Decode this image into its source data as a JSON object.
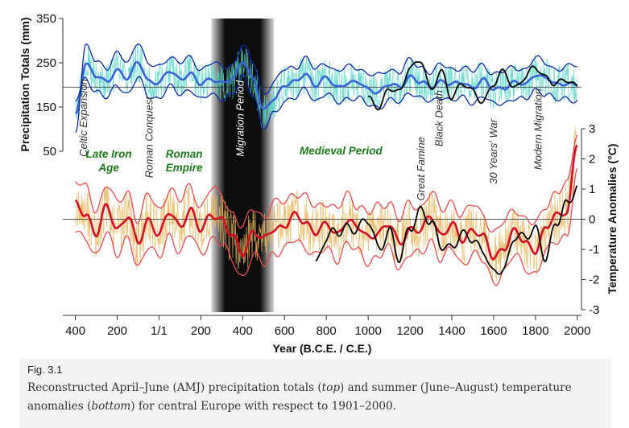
{
  "chart_data": [
    {
      "type": "line",
      "panel": "top",
      "ylabel": "Precipitation Totals (mm)",
      "ylim": [
        50,
        350
      ],
      "yticks": [
        "350",
        "250",
        "150",
        "50"
      ],
      "baseline": 195,
      "series_colors": [
        "#0d2aa8",
        "#3a63d6",
        "#55d6c7",
        "#000000"
      ],
      "x": [
        -400,
        -350,
        -300,
        -250,
        -200,
        -150,
        -100,
        -50,
        0,
        50,
        100,
        150,
        200,
        250,
        300,
        350,
        400,
        450,
        500,
        550,
        600,
        650,
        700,
        750,
        800,
        850,
        900,
        950,
        1000,
        1050,
        1100,
        1150,
        1200,
        1250,
        1300,
        1350,
        1400,
        1450,
        1500,
        1550,
        1600,
        1650,
        1700,
        1750,
        1800,
        1850,
        1900,
        1950,
        2000
      ],
      "series": [
        {
          "values": [
            130,
            250,
            220,
            205,
            235,
            215,
            250,
            210,
            205,
            230,
            215,
            225,
            200,
            215,
            205,
            210,
            255,
            215,
            140,
            170,
            200,
            205,
            225,
            200,
            215,
            195,
            205,
            205,
            190,
            185,
            200,
            195,
            220,
            205,
            195,
            210,
            200,
            205,
            195,
            210,
            190,
            195,
            205,
            200,
            225,
            215,
            200,
            205,
            200
          ]
        },
        {
          "values": [
            95,
            285,
            255,
            240,
            270,
            250,
            300,
            245,
            240,
            265,
            250,
            260,
            235,
            250,
            240,
            245,
            290,
            250,
            180,
            205,
            235,
            240,
            260,
            235,
            250,
            230,
            240,
            240,
            225,
            220,
            235,
            230,
            255,
            240,
            230,
            245,
            235,
            240,
            230,
            245,
            225,
            230,
            240,
            235,
            260,
            250,
            235,
            240,
            245
          ]
        },
        {
          "values": [
            165,
            215,
            185,
            170,
            200,
            180,
            215,
            175,
            170,
            195,
            180,
            190,
            165,
            180,
            170,
            175,
            220,
            180,
            100,
            135,
            165,
            170,
            190,
            165,
            180,
            160,
            170,
            170,
            155,
            150,
            165,
            160,
            185,
            170,
            160,
            175,
            165,
            170,
            160,
            175,
            155,
            160,
            170,
            165,
            190,
            180,
            165,
            170,
            165
          ]
        }
      ],
      "instrumental": {
        "x": [
          1000,
          1050,
          1100,
          1150,
          1200,
          1250,
          1300,
          1350,
          1400,
          1450,
          1500,
          1550,
          1600,
          1650,
          1700,
          1750,
          1800,
          1850,
          1900,
          1950,
          2000
        ],
        "values": [
          165,
          150,
          195,
          180,
          240,
          260,
          185,
          230,
          175,
          200,
          185,
          165,
          200,
          230,
          195,
          215,
          240,
          220,
          200,
          210,
          200
        ]
      }
    },
    {
      "type": "line",
      "panel": "bottom",
      "ylabel": "Temperature Anomalies (°C)",
      "ylim": [
        -3,
        3
      ],
      "yticks": [
        "3",
        "2",
        "1",
        "0",
        "-1",
        "-2",
        "-3"
      ],
      "baseline": 0,
      "series_colors": [
        "#d20f24",
        "#e84b52",
        "#e8b55a",
        "#000000"
      ],
      "x": [
        -400,
        -350,
        -300,
        -250,
        -200,
        -150,
        -100,
        -50,
        0,
        50,
        100,
        150,
        200,
        250,
        300,
        350,
        400,
        450,
        500,
        550,
        600,
        650,
        700,
        750,
        800,
        850,
        900,
        950,
        1000,
        1050,
        1100,
        1150,
        1200,
        1250,
        1300,
        1350,
        1400,
        1450,
        1500,
        1550,
        1600,
        1650,
        1700,
        1750,
        1800,
        1850,
        1900,
        1950,
        2000
      ],
      "series": [
        {
          "values": [
            0.5,
            0.2,
            -0.5,
            0.4,
            -0.3,
            0.1,
            -0.8,
            0.0,
            -0.5,
            0.2,
            -0.2,
            0.3,
            -0.4,
            0.2,
            0.0,
            -0.6,
            -1.1,
            -0.4,
            -0.7,
            -0.3,
            -0.2,
            0.1,
            -0.1,
            -0.4,
            -0.2,
            -0.5,
            0.0,
            -0.3,
            -0.6,
            -0.4,
            -0.2,
            -0.8,
            -0.3,
            -0.4,
            0.1,
            -0.5,
            -0.2,
            -0.7,
            -0.3,
            -0.6,
            -1.3,
            -0.9,
            -0.4,
            -0.8,
            -1.0,
            -0.3,
            0.1,
            0.3,
            2.5
          ]
        },
        {
          "values": [
            1.3,
            1.0,
            0.3,
            1.2,
            0.5,
            0.9,
            0.0,
            0.8,
            0.3,
            1.0,
            0.6,
            1.1,
            0.4,
            1.0,
            0.8,
            0.2,
            -0.3,
            0.4,
            0.1,
            0.5,
            0.6,
            0.9,
            0.7,
            0.4,
            0.6,
            0.3,
            0.8,
            0.5,
            0.2,
            0.4,
            0.6,
            0.0,
            0.5,
            0.4,
            0.9,
            0.3,
            0.6,
            0.1,
            0.5,
            0.2,
            -0.5,
            -0.1,
            0.4,
            0.0,
            -0.2,
            0.5,
            0.9,
            1.1,
            2.9
          ]
        },
        {
          "values": [
            -0.3,
            -0.6,
            -1.3,
            -0.4,
            -1.1,
            -0.7,
            -1.6,
            -0.8,
            -1.3,
            -0.6,
            -1.0,
            -0.5,
            -1.2,
            -0.6,
            -0.8,
            -1.4,
            -1.9,
            -1.2,
            -1.5,
            -1.1,
            -1.0,
            -0.7,
            -0.9,
            -1.2,
            -1.0,
            -1.3,
            -0.8,
            -1.1,
            -1.4,
            -1.2,
            -1.0,
            -1.6,
            -1.1,
            -1.2,
            -0.7,
            -1.3,
            -1.0,
            -1.5,
            -1.1,
            -1.4,
            -2.1,
            -1.7,
            -1.2,
            -1.6,
            -1.8,
            -1.1,
            -0.7,
            -0.5,
            1.5
          ]
        }
      ],
      "instrumental": {
        "x": [
          750,
          800,
          850,
          900,
          950,
          1000,
          1050,
          1100,
          1150,
          1200,
          1250,
          1300,
          1350,
          1400,
          1450,
          1500,
          1550,
          1600,
          1650,
          1700,
          1750,
          1800,
          1850,
          1900,
          1950,
          2000
        ],
        "values": [
          -1.4,
          -0.6,
          -0.5,
          -0.2,
          -0.3,
          -0.1,
          -0.9,
          -0.4,
          -1.4,
          -0.2,
          0.3,
          -0.2,
          -0.8,
          -0.9,
          -0.6,
          -0.6,
          -1.0,
          -1.9,
          -1.6,
          -0.5,
          -0.7,
          -0.3,
          -1.2,
          -0.2,
          0.5,
          1.2
        ]
      }
    }
  ],
  "x_axis": {
    "label": "Year (B.C.E. / C.E.)",
    "range": [
      -460,
      2020
    ],
    "ticks": [
      {
        "value": -400,
        "label": "400"
      },
      {
        "value": -200,
        "label": "200"
      },
      {
        "value": 0,
        "label": "1/1"
      },
      {
        "value": 200,
        "label": "200"
      },
      {
        "value": 400,
        "label": "400"
      },
      {
        "value": 600,
        "label": "600"
      },
      {
        "value": 800,
        "label": "800"
      },
      {
        "value": 1000,
        "label": "1000"
      },
      {
        "value": 1200,
        "label": "1200"
      },
      {
        "value": 1400,
        "label": "1400"
      },
      {
        "value": 1600,
        "label": "1600"
      },
      {
        "value": 1800,
        "label": "1800"
      },
      {
        "value": 2000,
        "label": "2000"
      }
    ]
  },
  "shaded_period": {
    "start": 250,
    "end": 550,
    "color": "#000000"
  },
  "annotations": {
    "periods": [
      {
        "text": "Late Iron",
        "x": -240,
        "color": "#1d7a1d"
      },
      {
        "text": "Age",
        "x": -240,
        "color": "#1d7a1d"
      },
      {
        "text": "Roman",
        "x": 120,
        "color": "#1d7a1d"
      },
      {
        "text": "Empire",
        "x": 120,
        "color": "#1d7a1d"
      },
      {
        "text": "Medieval Period",
        "x": 870,
        "color": "#1d7a1d"
      }
    ],
    "events": [
      {
        "text": "Celtic Expansion",
        "x": -345
      },
      {
        "text": "Roman Conquest",
        "x": -30
      },
      {
        "text": "Migration Period",
        "x": 405
      },
      {
        "text": "Great Famine",
        "x": 1270
      },
      {
        "text": "Black Death",
        "x": 1355
      },
      {
        "text": "30 Years' War",
        "x": 1615
      },
      {
        "text": "Modern Migration",
        "x": 1830
      }
    ]
  },
  "caption": {
    "label": "Fig. 3.1",
    "part1": "Reconstructed April–June (AMJ) precipitation totals (",
    "em1": "top",
    "part2": ") and summer (June–August) temperature anomalies (",
    "em2": "bottom",
    "part3": ") for central Europe with respect to 1901–2000."
  }
}
